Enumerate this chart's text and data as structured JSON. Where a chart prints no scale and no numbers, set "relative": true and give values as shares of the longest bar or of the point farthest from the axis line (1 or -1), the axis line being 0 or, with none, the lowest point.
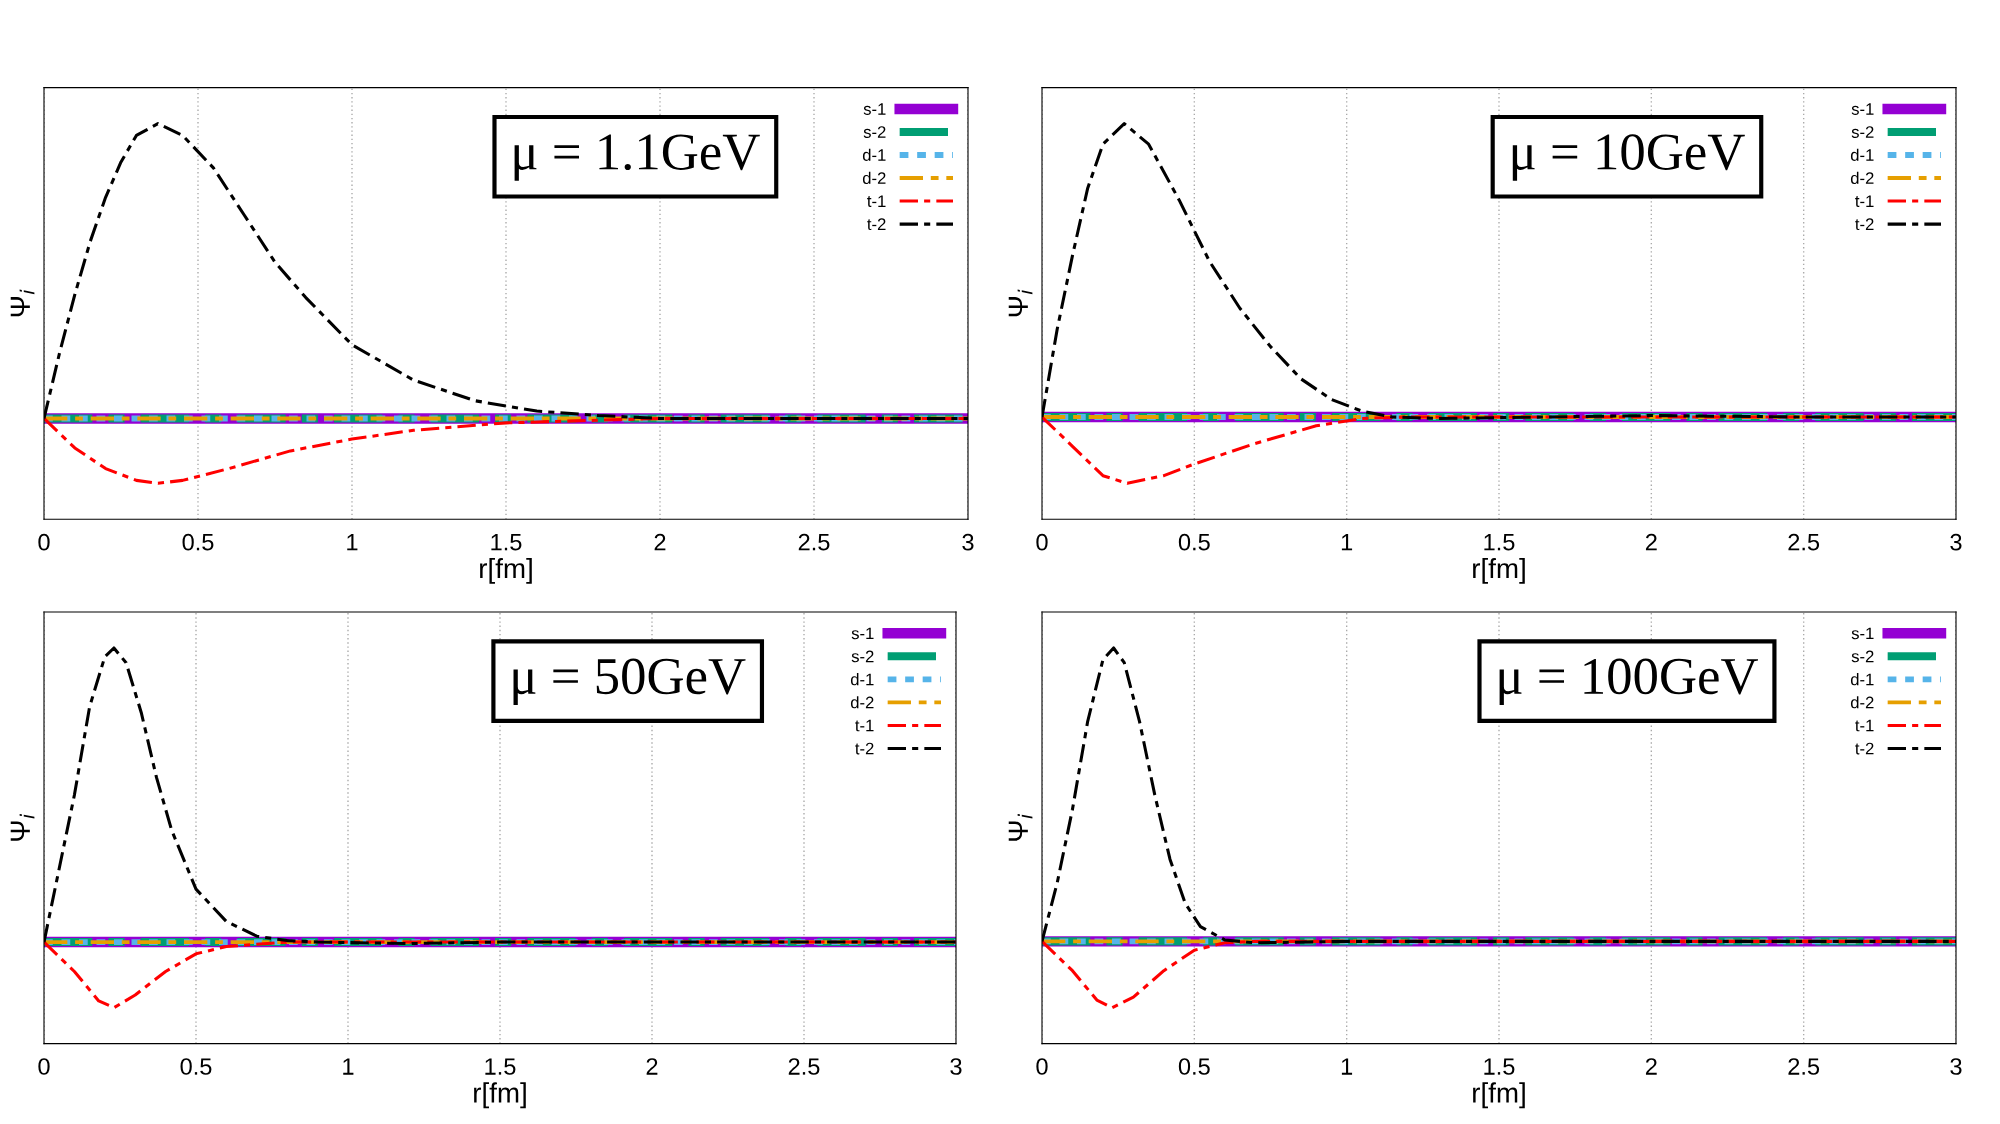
{
  "chart_data": [
    {
      "type": "line",
      "relative": true,
      "xlabel": "r[fm]",
      "ylabel": "Ψ$_{i}$",
      "annotations": [
        "μ = 1.1GeV"
      ],
      "xlim": [
        0,
        3
      ],
      "xticks": [
        0,
        0.5,
        1,
        1.5,
        2,
        2.5,
        3
      ],
      "grid": "x",
      "legend": "top right",
      "tick_labels": "x",
      "series": [
        {
          "name": "s-1",
          "color": "#9400d3",
          "line_style": "solid",
          "x": [
            0,
            3
          ],
          "values": [
            0,
            0
          ]
        },
        {
          "name": "s-2",
          "color": "#009e73",
          "line_style": "dashed",
          "x": [
            0,
            3
          ],
          "values": [
            0,
            0
          ]
        },
        {
          "name": "d-1",
          "color": "#56b4e9",
          "line_style": "dotted",
          "x": [
            0,
            3
          ],
          "values": [
            0,
            0
          ]
        },
        {
          "name": "d-2",
          "color": "#e69f00",
          "line_style": "dashed",
          "x": [
            0,
            3
          ],
          "values": [
            0,
            0
          ]
        },
        {
          "name": "t-1",
          "color": "#ff0000",
          "line_style": "dashed",
          "x": [
            0,
            0.1,
            0.2,
            0.3,
            0.37,
            0.45,
            0.6,
            0.8,
            1.0,
            1.2,
            1.5,
            2,
            2.5,
            3
          ],
          "values": [
            0,
            -0.1,
            -0.17,
            -0.21,
            -0.22,
            -0.21,
            -0.17,
            -0.11,
            -0.07,
            -0.04,
            -0.015,
            0,
            0,
            0
          ]
        },
        {
          "name": "t-2",
          "color": "#000000",
          "line_style": "dashed",
          "x": [
            0,
            0.05,
            0.1,
            0.15,
            0.2,
            0.25,
            0.3,
            0.37,
            0.45,
            0.55,
            0.65,
            0.75,
            0.85,
            1.0,
            1.2,
            1.4,
            1.6,
            1.8,
            2.0,
            2.5,
            3.0
          ],
          "values": [
            0,
            0.22,
            0.42,
            0.6,
            0.75,
            0.87,
            0.96,
            1.0,
            0.96,
            0.85,
            0.69,
            0.53,
            0.41,
            0.25,
            0.13,
            0.06,
            0.025,
            0.01,
            0,
            0,
            0
          ]
        }
      ]
    },
    {
      "type": "line",
      "relative": true,
      "xlabel": "r[fm]",
      "ylabel": "Ψ$_{i}$",
      "annotations": [
        "μ = 10GeV"
      ],
      "xlim": [
        0,
        3
      ],
      "xticks": [
        0,
        0.5,
        1,
        1.5,
        2,
        2.5,
        3
      ],
      "grid": "x",
      "legend": "top right",
      "tick_labels": "x",
      "series": [
        {
          "name": "s-1",
          "color": "#9400d3",
          "line_style": "solid",
          "x": [
            0,
            3
          ],
          "values": [
            0,
            0
          ]
        },
        {
          "name": "s-2",
          "color": "#009e73",
          "line_style": "dashed",
          "x": [
            0,
            3
          ],
          "values": [
            0,
            0
          ]
        },
        {
          "name": "d-1",
          "color": "#56b4e9",
          "line_style": "dotted",
          "x": [
            0,
            3
          ],
          "values": [
            0,
            0
          ]
        },
        {
          "name": "d-2",
          "color": "#e69f00",
          "line_style": "dashed",
          "x": [
            0,
            3
          ],
          "values": [
            0,
            0
          ]
        },
        {
          "name": "t-1",
          "color": "#ff0000",
          "line_style": "dashed",
          "x": [
            0,
            0.1,
            0.2,
            0.28,
            0.4,
            0.5,
            0.7,
            0.9,
            1.05,
            1.2,
            3
          ],
          "values": [
            0,
            -0.1,
            -0.2,
            -0.226,
            -0.2,
            -0.16,
            -0.09,
            -0.03,
            -0.005,
            0,
            0
          ]
        },
        {
          "name": "t-2",
          "color": "#000000",
          "line_style": "dashed",
          "x": [
            0,
            0.05,
            0.1,
            0.15,
            0.2,
            0.27,
            0.35,
            0.45,
            0.55,
            0.65,
            0.75,
            0.85,
            0.95,
            1.05,
            1.15,
            1.3,
            2,
            2.5,
            3
          ],
          "values": [
            0,
            0.3,
            0.55,
            0.78,
            0.93,
            1.0,
            0.93,
            0.74,
            0.53,
            0.37,
            0.24,
            0.13,
            0.06,
            0.02,
            0,
            -0.005,
            0.005,
            0,
            0
          ]
        }
      ]
    },
    {
      "type": "line",
      "relative": true,
      "xlabel": "r[fm]",
      "ylabel": "Ψ$_{i}$",
      "annotations": [
        "μ = 50GeV"
      ],
      "xlim": [
        0,
        3
      ],
      "xticks": [
        0,
        0.5,
        1,
        1.5,
        2,
        2.5,
        3
      ],
      "grid": "x",
      "legend": "top right",
      "tick_labels": "x",
      "series": [
        {
          "name": "s-1",
          "color": "#9400d3",
          "line_style": "solid",
          "x": [
            0,
            3
          ],
          "values": [
            0,
            0
          ]
        },
        {
          "name": "s-2",
          "color": "#009e73",
          "line_style": "dashed",
          "x": [
            0,
            3
          ],
          "values": [
            0,
            0
          ]
        },
        {
          "name": "d-1",
          "color": "#56b4e9",
          "line_style": "dotted",
          "x": [
            0,
            3
          ],
          "values": [
            0,
            0
          ]
        },
        {
          "name": "d-2",
          "color": "#e69f00",
          "line_style": "dashed",
          "x": [
            0,
            3
          ],
          "values": [
            0,
            0
          ]
        },
        {
          "name": "t-1",
          "color": "#ff0000",
          "line_style": "dashed",
          "x": [
            0,
            0.1,
            0.18,
            0.23,
            0.3,
            0.4,
            0.5,
            0.6,
            0.8,
            3
          ],
          "values": [
            0,
            -0.1,
            -0.2,
            -0.223,
            -0.18,
            -0.1,
            -0.04,
            -0.015,
            0,
            0
          ]
        },
        {
          "name": "t-2",
          "color": "#000000",
          "line_style": "dashed",
          "x": [
            0,
            0.05,
            0.1,
            0.15,
            0.2,
            0.23,
            0.27,
            0.32,
            0.37,
            0.42,
            0.5,
            0.6,
            0.7,
            0.8,
            0.9,
            1.2,
            1.5,
            2,
            3
          ],
          "values": [
            0,
            0.25,
            0.5,
            0.8,
            0.97,
            1.0,
            0.95,
            0.78,
            0.56,
            0.38,
            0.18,
            0.07,
            0.02,
            0.005,
            0,
            -0.005,
            0,
            0,
            0
          ]
        }
      ]
    },
    {
      "type": "line",
      "relative": true,
      "xlabel": "r[fm]",
      "ylabel": "Ψ$_{i}$",
      "annotations": [
        "μ = 100GeV"
      ],
      "xlim": [
        0,
        3
      ],
      "xticks": [
        0,
        0.5,
        1,
        1.5,
        2,
        2.5,
        3
      ],
      "grid": "x",
      "legend": "top right",
      "tick_labels": "x",
      "series": [
        {
          "name": "s-1",
          "color": "#9400d3",
          "line_style": "solid",
          "x": [
            0,
            3
          ],
          "values": [
            0,
            0
          ]
        },
        {
          "name": "s-2",
          "color": "#009e73",
          "line_style": "dashed",
          "x": [
            0,
            3
          ],
          "values": [
            0,
            0
          ]
        },
        {
          "name": "d-1",
          "color": "#56b4e9",
          "line_style": "dotted",
          "x": [
            0,
            3
          ],
          "values": [
            0,
            0
          ]
        },
        {
          "name": "d-2",
          "color": "#e69f00",
          "line_style": "dashed",
          "x": [
            0,
            3
          ],
          "values": [
            0,
            0
          ]
        },
        {
          "name": "t-1",
          "color": "#ff0000",
          "line_style": "dashed",
          "x": [
            0,
            0.1,
            0.18,
            0.23,
            0.3,
            0.4,
            0.5,
            0.6,
            0.7,
            3
          ],
          "values": [
            0,
            -0.1,
            -0.2,
            -0.226,
            -0.19,
            -0.1,
            -0.03,
            -0.005,
            0,
            0
          ]
        },
        {
          "name": "t-2",
          "color": "#000000",
          "line_style": "dashed",
          "x": [
            0,
            0.05,
            0.1,
            0.15,
            0.2,
            0.235,
            0.27,
            0.32,
            0.37,
            0.42,
            0.47,
            0.52,
            0.6,
            0.7,
            1,
            3
          ],
          "values": [
            0,
            0.2,
            0.45,
            0.75,
            0.96,
            1.0,
            0.95,
            0.75,
            0.5,
            0.28,
            0.13,
            0.05,
            0.005,
            -0.005,
            0,
            0
          ]
        }
      ]
    }
  ]
}
